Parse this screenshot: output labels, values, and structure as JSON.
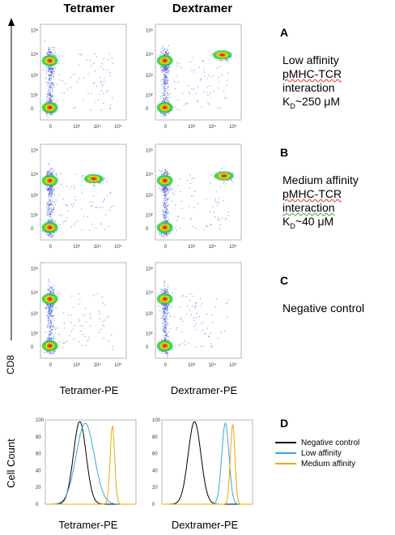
{
  "columns": {
    "left": "Tetramer",
    "right": "Dextramer"
  },
  "y_axis_label": "CD8",
  "dot_axis_x_label_left": "Tetramer-PE",
  "dot_axis_x_label_right": "Dextramer-PE",
  "dot_ticks": [
    "0",
    "10³",
    "10⁴",
    "10⁵",
    "10²"
  ],
  "panels": [
    {
      "letter": "A",
      "line1": "Low affinity",
      "line2": "pMHC-TCR",
      "line3": "interaction",
      "kd_prefix": "K",
      "kd_sub": "D",
      "kd_value": "~250 μM"
    },
    {
      "letter": "B",
      "line1": "Medium affinity",
      "line2": "pMHC-TCR",
      "line3": "interaction",
      "kd_prefix": "K",
      "kd_sub": "D",
      "kd_value": "~40 μM"
    },
    {
      "letter": "C",
      "line1": "Negative control"
    },
    {
      "letter": "D"
    }
  ],
  "histogram": {
    "y_label": "Cell Count",
    "y_ticks": [
      "100",
      "80",
      "60",
      "40",
      "20",
      "0"
    ],
    "x_label_left": "Tetramer-PE",
    "x_label_right": "Dextramer-PE",
    "legend": [
      {
        "label": "Negative control",
        "color": "#000000"
      },
      {
        "label": "Low affinity",
        "color": "#3aa6e0"
      },
      {
        "label": "Medium affinity",
        "color": "#f0a800"
      }
    ]
  }
}
